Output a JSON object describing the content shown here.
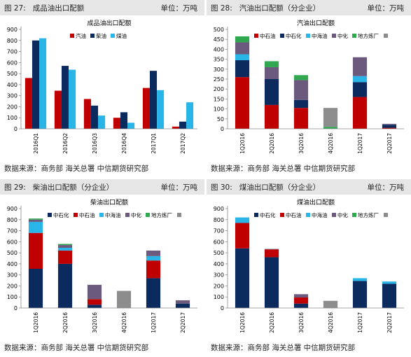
{
  "panels": [
    {
      "label": "图 27:",
      "title": "成品油出口配额",
      "unit_label": "单位：万吨",
      "source": "数据来源：商务部 海关总署 中信期货研究部"
    },
    {
      "label": "图 28:",
      "title": "汽油出口配额（分企业）",
      "unit_label": "单位：万吨",
      "source": "数据来源：商务部 海关总署 中信期货研究部"
    },
    {
      "label": "图 29:",
      "title": "柴油出口配额（分企业）",
      "unit_label": "单位：万吨",
      "source": "数据来源：商务部 海关总署 中信期货研究部"
    },
    {
      "label": "图 30:",
      "title": "煤油出口配额（分企业）",
      "unit_label": "单位：万吨",
      "source": "数据来源：商务部 海关总署 中信期货研究部"
    }
  ],
  "chart_data": [
    {
      "type": "bar",
      "title": "成品油出口配额",
      "categories": [
        "2016Q1",
        "2016Q2",
        "2016Q3",
        "2016Q4",
        "2017Q1",
        "2017Q2"
      ],
      "ylim": [
        0,
        900
      ],
      "yticks": [
        0,
        100,
        200,
        300,
        400,
        500,
        600,
        700,
        800,
        900
      ],
      "legend_position": "top-left",
      "series": [
        {
          "name": "汽油",
          "color": "#c00000",
          "values": [
            460,
            345,
            270,
            100,
            370,
            20
          ]
        },
        {
          "name": "柴油",
          "color": "#0b2a5e",
          "values": [
            800,
            570,
            210,
            150,
            525,
            65
          ]
        },
        {
          "name": "煤油",
          "color": "#29b5e8",
          "values": [
            820,
            535,
            120,
            55,
            350,
            240
          ]
        }
      ]
    },
    {
      "type": "bar",
      "stacked": true,
      "title": "汽油出口配额",
      "categories": [
        "1Q2016",
        "2Q2016",
        "3Q2016",
        "4Q2016",
        "1Q2017",
        "2Q2017"
      ],
      "ylim": [
        0,
        500
      ],
      "yticks": [
        0,
        50,
        100,
        150,
        200,
        250,
        300,
        350,
        400,
        450,
        500
      ],
      "legend_position": "top",
      "series": [
        {
          "name": "中石油",
          "color": "#c00000",
          "values": [
            260,
            120,
            105,
            0,
            160,
            5
          ]
        },
        {
          "name": "中石化",
          "color": "#0b2a5e",
          "values": [
            85,
            130,
            40,
            0,
            75,
            15
          ]
        },
        {
          "name": "中海油",
          "color": "#29b5e8",
          "values": [
            30,
            0,
            0,
            0,
            30,
            0
          ]
        },
        {
          "name": "中化",
          "color": "#6b5a7e",
          "values": [
            60,
            60,
            100,
            0,
            95,
            5
          ]
        },
        {
          "name": "地方炼厂",
          "color": "#2fa84f",
          "values": [
            30,
            30,
            25,
            10,
            0,
            0
          ]
        },
        {
          "name": "",
          "color": "#8c8c8c",
          "values": [
            0,
            0,
            0,
            95,
            0,
            0
          ]
        }
      ]
    },
    {
      "type": "bar",
      "stacked": true,
      "title": "柴油出口配额",
      "categories": [
        "1Q2016",
        "2Q2016",
        "3Q2016",
        "4Q2016",
        "1Q2017",
        "2Q2017"
      ],
      "ylim": [
        0,
        900
      ],
      "yticks": [
        0,
        100,
        200,
        300,
        400,
        500,
        600,
        700,
        800,
        900
      ],
      "legend_position": "top",
      "series": [
        {
          "name": "中石化",
          "color": "#0b2a5e",
          "values": [
            355,
            400,
            30,
            0,
            270,
            40
          ]
        },
        {
          "name": "中石油",
          "color": "#c00000",
          "values": [
            325,
            120,
            50,
            0,
            160,
            0
          ]
        },
        {
          "name": "中海油",
          "color": "#29b5e8",
          "values": [
            100,
            25,
            0,
            0,
            40,
            0
          ]
        },
        {
          "name": "中化",
          "color": "#6b5a7e",
          "values": [
            20,
            25,
            130,
            0,
            50,
            30
          ]
        },
        {
          "name": "地方炼厂",
          "color": "#2fa84f",
          "values": [
            10,
            10,
            0,
            0,
            0,
            0
          ]
        },
        {
          "name": "",
          "color": "#8c8c8c",
          "values": [
            0,
            0,
            0,
            155,
            0,
            0
          ]
        }
      ]
    },
    {
      "type": "bar",
      "stacked": true,
      "title": "煤油出口配额",
      "categories": [
        "1Q2016",
        "2Q2016",
        "3Q2016",
        "4Q2016",
        "1Q2017",
        "2Q2017"
      ],
      "ylim": [
        0,
        900
      ],
      "yticks": [
        0,
        100,
        200,
        300,
        400,
        500,
        600,
        700,
        800,
        900
      ],
      "legend_position": "top",
      "series": [
        {
          "name": "中石化",
          "color": "#0b2a5e",
          "values": [
            540,
            460,
            40,
            0,
            245,
            220
          ]
        },
        {
          "name": "中石油",
          "color": "#c00000",
          "values": [
            230,
            70,
            55,
            0,
            0,
            0
          ]
        },
        {
          "name": "中海油",
          "color": "#29b5e8",
          "values": [
            50,
            0,
            0,
            0,
            25,
            20
          ]
        },
        {
          "name": "中化",
          "color": "#6b5a7e",
          "values": [
            0,
            5,
            30,
            0,
            0,
            0
          ]
        },
        {
          "name": "地方炼厂",
          "color": "#2fa84f",
          "values": [
            0,
            0,
            0,
            0,
            0,
            0
          ]
        },
        {
          "name": "",
          "color": "#8c8c8c",
          "values": [
            0,
            0,
            0,
            65,
            0,
            0
          ]
        }
      ]
    }
  ]
}
